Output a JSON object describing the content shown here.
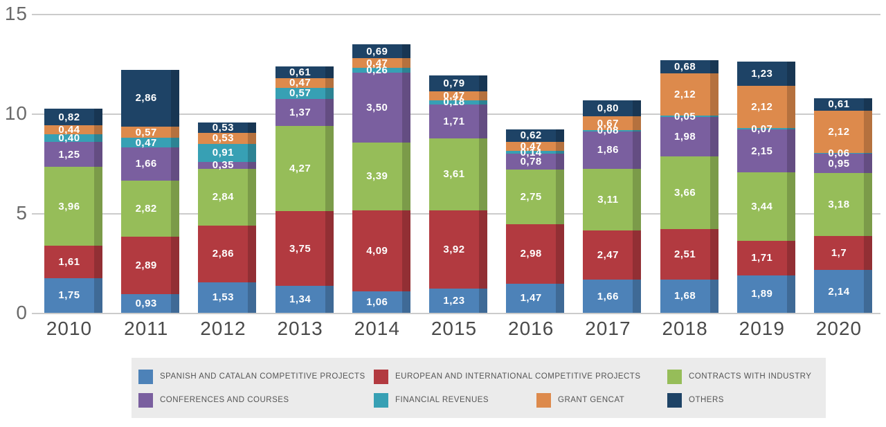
{
  "chart_data": {
    "type": "bar",
    "subtype": "stacked-vertical",
    "title": "",
    "xlabel": "",
    "ylabel": "",
    "categories": [
      "2010",
      "2011",
      "2012",
      "2013",
      "2014",
      "2015",
      "2016",
      "2017",
      "2018",
      "2019",
      "2020"
    ],
    "y_ticks": [
      0,
      5,
      10,
      15
    ],
    "ylim": [
      0,
      15
    ],
    "grid": "horizontal",
    "legend_position": "bottom",
    "decimal_separator": ",",
    "series": [
      {
        "name": "SPANISH AND CATALAN COMPETITIVE PROJECTS",
        "color": "#4d82b8",
        "values": [
          1.75,
          0.93,
          1.53,
          1.34,
          1.06,
          1.23,
          1.47,
          1.66,
          1.68,
          1.89,
          2.14
        ],
        "labels": [
          "1,75",
          "0,93",
          "1,53",
          "1,34",
          "1,06",
          "1,23",
          "1,47",
          "1,66",
          "1,68",
          "1,89",
          "2,14"
        ]
      },
      {
        "name": "EUROPEAN AND INTERNATIONAL COMPETITIVE PROJECTS",
        "color": "#b23a40",
        "values": [
          1.61,
          2.89,
          2.86,
          3.75,
          4.09,
          3.92,
          2.98,
          2.47,
          2.51,
          1.71,
          1.7
        ],
        "labels": [
          "1,61",
          "2,89",
          "2,86",
          "3,75",
          "4,09",
          "3,92",
          "2,98",
          "2,47",
          "2,51",
          "1,71",
          "1,7"
        ]
      },
      {
        "name": "CONTRACTS WITH INDUSTRY",
        "color": "#96bd59",
        "values": [
          3.96,
          2.82,
          2.84,
          4.27,
          3.39,
          3.61,
          2.75,
          3.11,
          3.66,
          3.44,
          3.18
        ],
        "labels": [
          "3,96",
          "2,82",
          "2,84",
          "4,27",
          "3,39",
          "3,61",
          "2,75",
          "3,11",
          "3,66",
          "3,44",
          "3,18"
        ]
      },
      {
        "name": "CONFERENCES AND COURSES",
        "color": "#7a5f9f",
        "values": [
          1.25,
          1.66,
          0.35,
          1.37,
          3.5,
          1.71,
          0.78,
          1.86,
          1.98,
          2.15,
          0.95
        ],
        "labels": [
          "1,25",
          "1,66",
          "0,35",
          "1,37",
          "3,50",
          "1,71",
          "0,78",
          "1,86",
          "1,98",
          "2,15",
          "0,95"
        ]
      },
      {
        "name": "FINANCIAL REVENUES",
        "color": "#37a0b4",
        "values": [
          0.4,
          0.47,
          0.91,
          0.57,
          0.26,
          0.18,
          0.14,
          0.08,
          0.05,
          0.07,
          0.06
        ],
        "labels": [
          "0,40",
          "0,47",
          "0,91",
          "0,57",
          "0,26",
          "0,18",
          "0,14",
          "0,08",
          "0,05",
          "0,07",
          "0,06"
        ]
      },
      {
        "name": "GRANT GENCAT",
        "color": "#dd8a4c",
        "values": [
          0.44,
          0.57,
          0.53,
          0.47,
          0.47,
          0.47,
          0.47,
          0.67,
          2.12,
          2.12,
          2.12
        ],
        "labels": [
          "0,44",
          "0,57",
          "0,53",
          "0,47",
          "0,47",
          "0,47",
          "0,47",
          "0,67",
          "2,12",
          "2,12",
          "2,12"
        ]
      },
      {
        "name": "OTHERS",
        "color": "#1e4366",
        "values": [
          0.82,
          2.86,
          0.53,
          0.61,
          0.69,
          0.79,
          0.62,
          0.8,
          0.68,
          1.23,
          0.61
        ],
        "labels": [
          "0,82",
          "2,86",
          "0,53",
          "0,61",
          "0,69",
          "0,79",
          "0,62",
          "0,80",
          "0,68",
          "1,23",
          "0,61"
        ]
      }
    ]
  }
}
